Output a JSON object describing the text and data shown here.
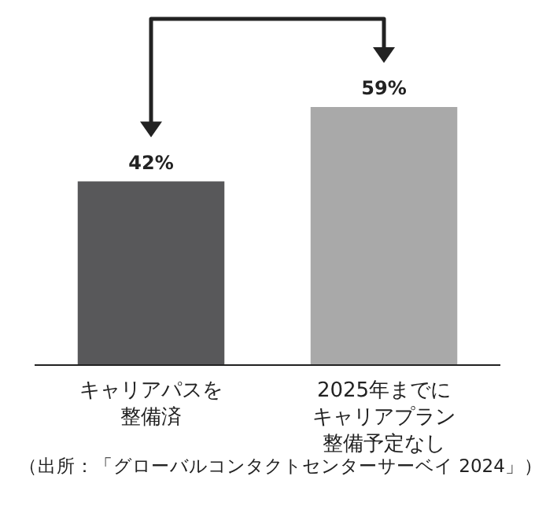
{
  "chart_data": {
    "type": "bar",
    "categories": [
      "キャリアパスを整備済",
      "2025年までにキャリアプラン整備予定なし"
    ],
    "values": [
      42,
      59
    ],
    "colors": [
      "#58585a",
      "#a9a9a9"
    ],
    "value_labels": [
      "42%",
      "59%"
    ],
    "annotations": [
      "（出所：「グローバルコンタクトセンターサーベイ 2024」）"
    ]
  }
}
